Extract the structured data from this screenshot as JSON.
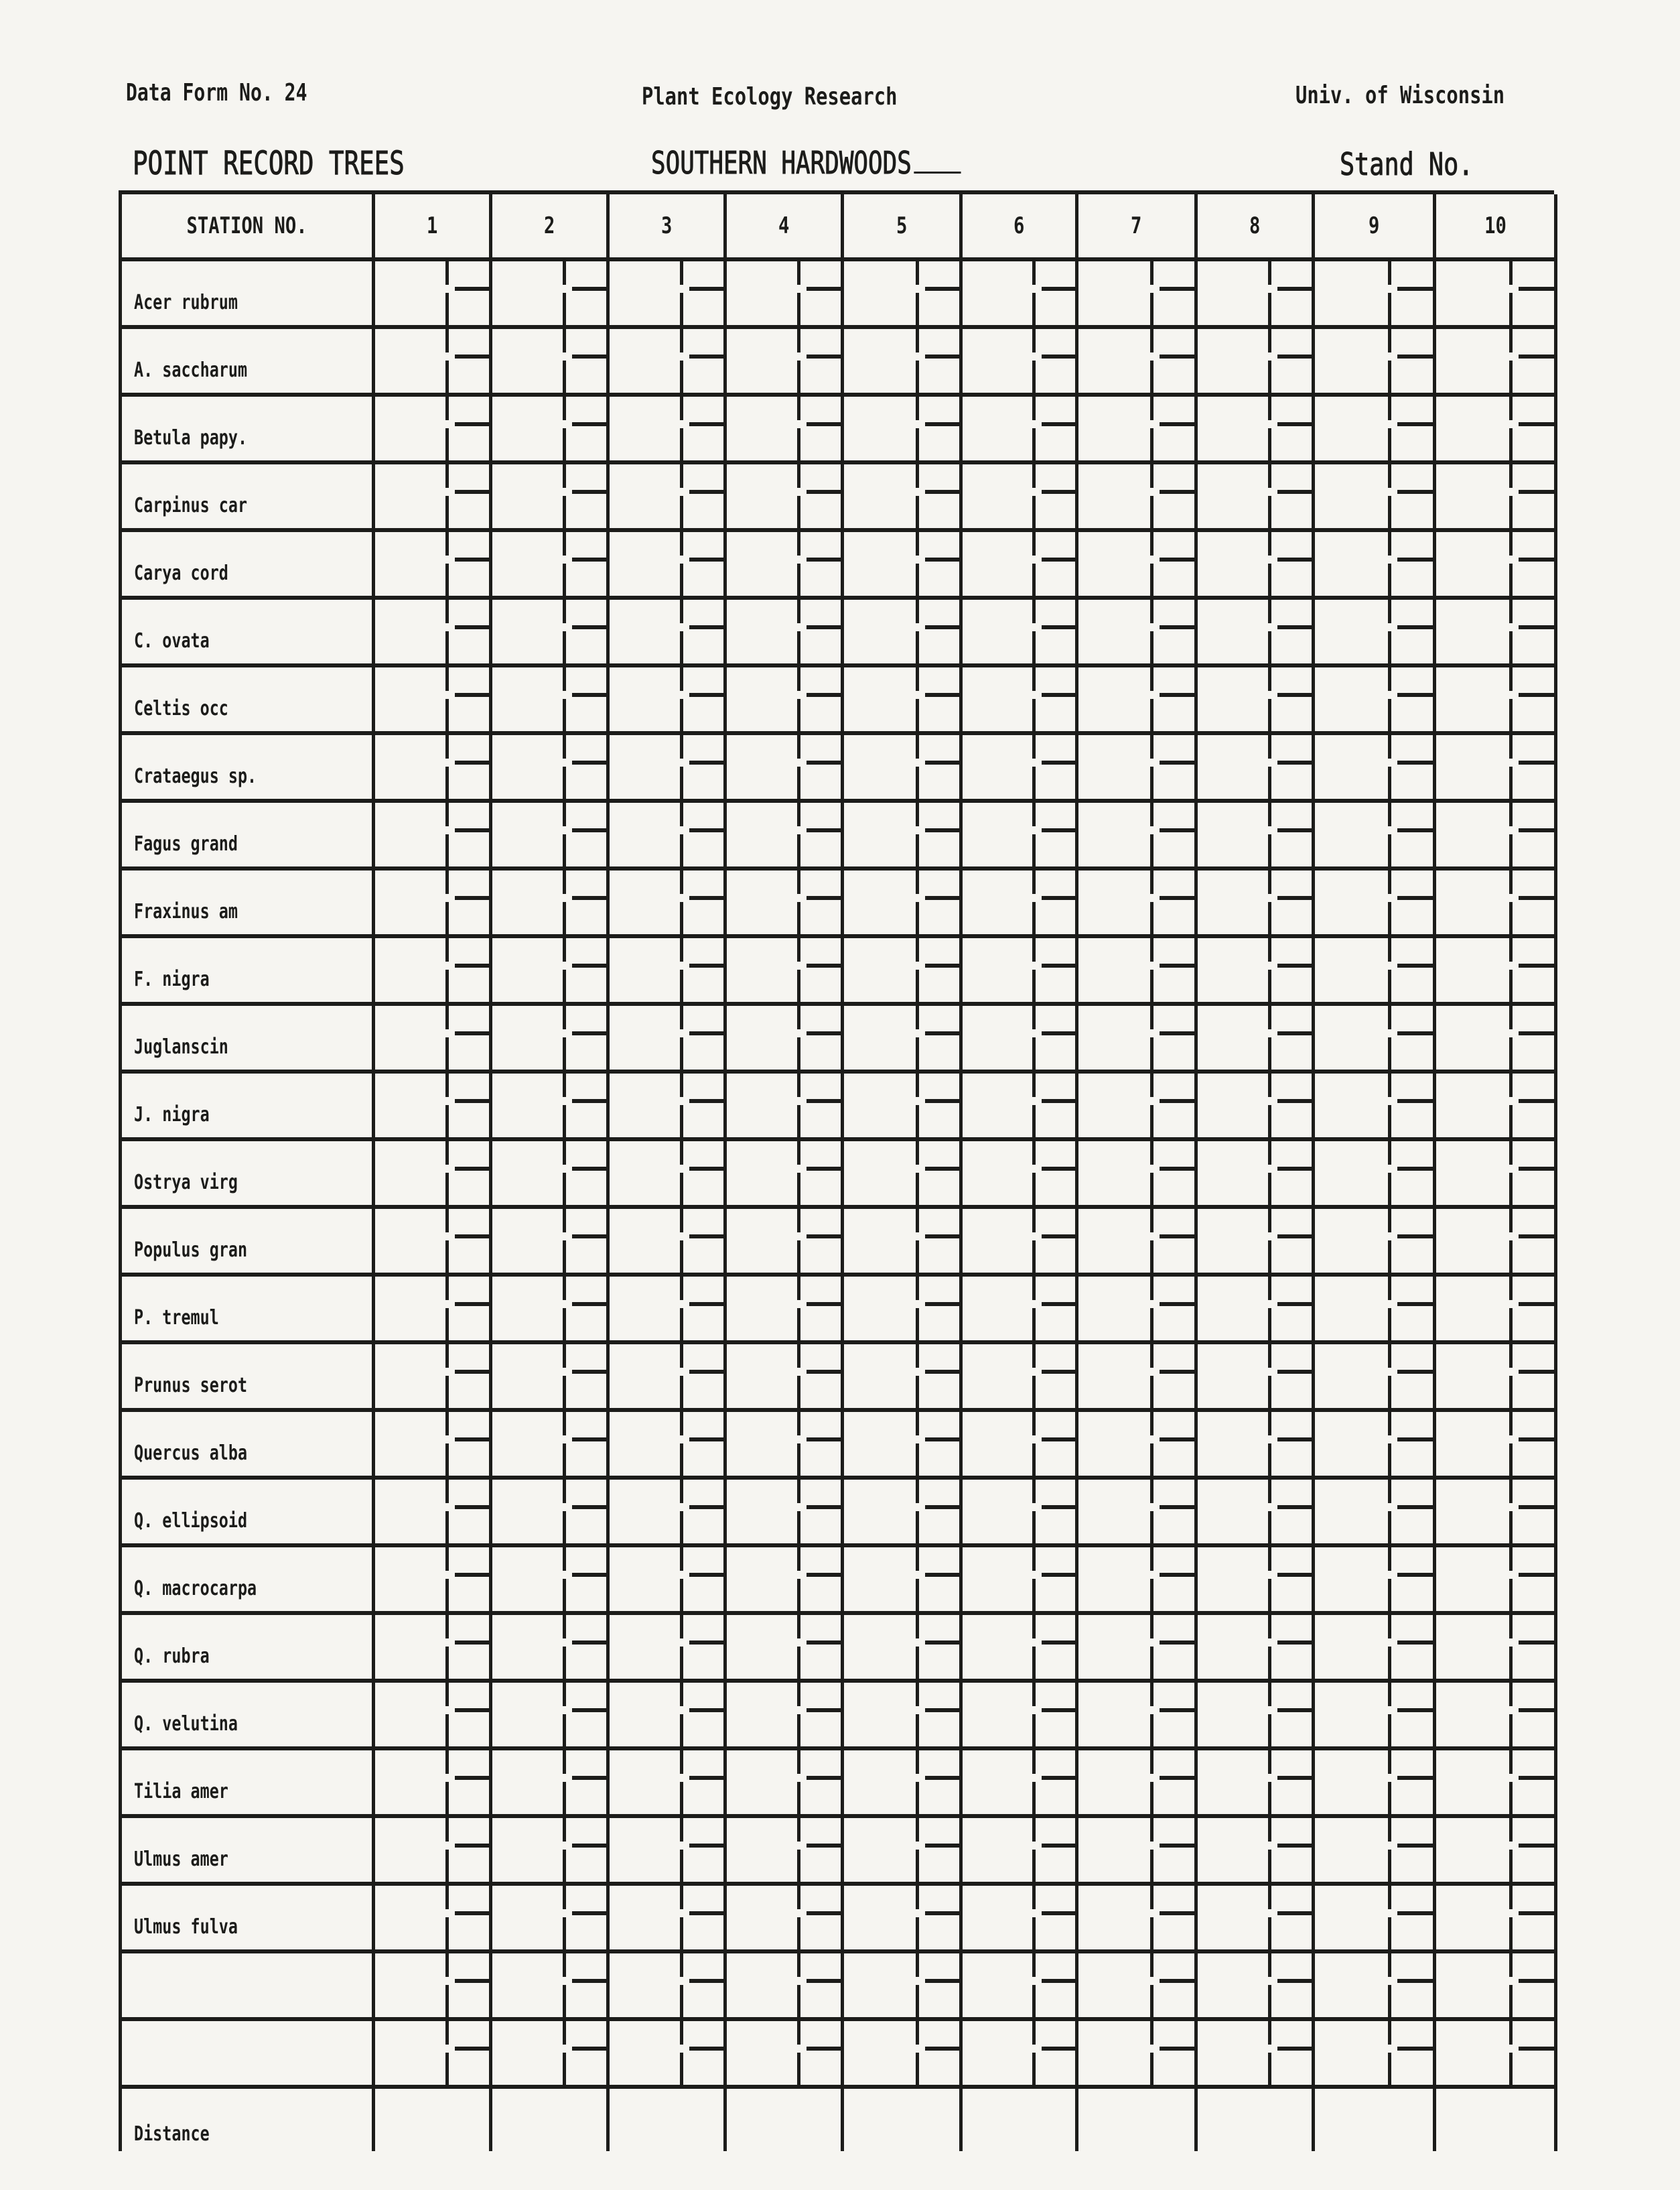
{
  "header": {
    "form_number": "Data Form No. 24",
    "lab": "Plant Ecology Research",
    "institution": "Univ. of Wisconsin",
    "title": "POINT RECORD TREES",
    "subtitle": "SOUTHERN HARDWOODS",
    "stand_label": "Stand No."
  },
  "table": {
    "corner_label": "STATION NO.",
    "stations": [
      "1",
      "2",
      "3",
      "4",
      "5",
      "6",
      "7",
      "8",
      "9",
      "10"
    ],
    "species": [
      "Acer rubrum",
      "A. saccharum",
      "Betula papy.",
      "Carpinus car",
      "Carya cord",
      "C. ovata",
      "Celtis occ",
      "Crataegus sp.",
      "Fagus grand",
      "Fraxinus am",
      "F. nigra",
      "Juglanscin",
      "J. nigra",
      "Ostrya virg",
      "Populus gran",
      "P. tremul",
      "Prunus serot",
      "Quercus alba",
      "Q. ellipsoid",
      "Q. macrocarpa",
      "Q. rubra",
      "Q. velutina",
      "Tilia amer",
      "Ulmus amer",
      "Ulmus fulva",
      "",
      ""
    ],
    "footer_label": "Distance"
  }
}
